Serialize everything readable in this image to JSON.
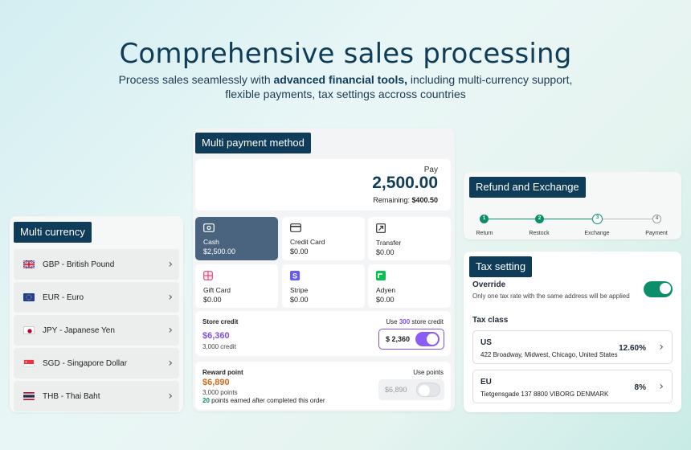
{
  "hero": {
    "title": "Comprehensive sales processing",
    "sub_pre": "Process sales seamlessly with ",
    "sub_bold": "advanced financial tools,",
    "sub_post": " including multi-currency support, flexible payments, tax settings accross countries"
  },
  "currency": {
    "title": "Multi currency",
    "items": [
      {
        "label": "GBP - British Pound",
        "flag": "uk-flag-icon"
      },
      {
        "label": "EUR - Euro",
        "flag": "eu-flag-icon"
      },
      {
        "label": "JPY - Japanese Yen",
        "flag": "japan-flag-icon"
      },
      {
        "label": "SGD - Singapore Dollar",
        "flag": "singapore-flag-icon"
      },
      {
        "label": "THB - Thai Baht",
        "flag": "thailand-flag-icon"
      }
    ]
  },
  "payment": {
    "title": "Multi payment method",
    "pay_label": "Pay",
    "pay_amount": "2,500.00",
    "remaining_label": "Remaining: ",
    "remaining_value": "$400.50",
    "methods": [
      {
        "name": "Cash",
        "value": "$2,500.00",
        "active": true,
        "icon": "cash-icon"
      },
      {
        "name": "Credit Card",
        "value": "$0.00",
        "active": false,
        "icon": "credit-card-icon"
      },
      {
        "name": "Transfer",
        "value": "$0.00",
        "active": false,
        "icon": "transfer-icon"
      },
      {
        "name": "Gift Card",
        "value": "$0.00",
        "active": false,
        "icon": "gift-card-icon"
      },
      {
        "name": "Stripe",
        "value": "$0.00",
        "active": false,
        "icon": "stripe-icon"
      },
      {
        "name": "Adyen",
        "value": "$0.00",
        "active": false,
        "icon": "adyen-icon"
      }
    ],
    "store_credit": {
      "title": "Store credit",
      "amount": "$6,360",
      "sub": "3,000 credit",
      "use_pre": "Use ",
      "use_num": "300",
      "use_post": " store credit",
      "input": "$ 2,360"
    },
    "reward": {
      "title": "Reward point",
      "amount": "$6,890",
      "sub": "3,000 points",
      "earn_num": "20",
      "earn_text": " points earned after completed this order",
      "use_label": "Use points",
      "input": "$6,890"
    }
  },
  "refund": {
    "title": "Refund and Exchange",
    "steps": [
      {
        "num": "1",
        "label": "Return"
      },
      {
        "num": "2",
        "label": "Restock"
      },
      {
        "num": "3",
        "label": "Exchange"
      },
      {
        "num": "4",
        "label": "Payment"
      }
    ]
  },
  "tax": {
    "title": "Tax setting",
    "override_title": "Override",
    "override_desc": "Only one tax rate with the same address will be applied",
    "class_title": "Tax class",
    "rows": [
      {
        "code": "US",
        "address": "422 Broadway, Midwest, Chicago, United States",
        "rate": "12.60%"
      },
      {
        "code": "EU",
        "address": "Tietgensgade 137 8800 VIBORG DENMARK",
        "rate": "8%"
      }
    ]
  },
  "colors": {
    "navy": "#0e3c59",
    "accent": "#0a8f6a",
    "purple": "#8250df"
  }
}
